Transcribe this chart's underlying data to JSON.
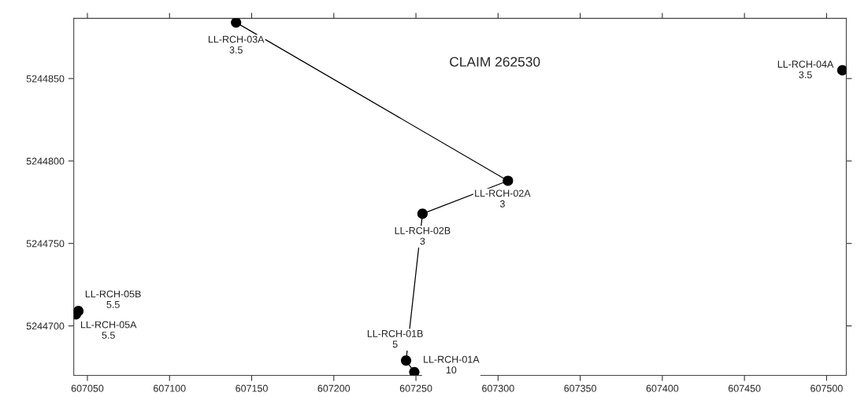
{
  "chart_data": {
    "type": "scatter",
    "series": [
      {
        "type": "line",
        "color": "#000000",
        "marker": "none",
        "line_style": "solid",
        "x": [
          607140.5,
          607306,
          607254,
          607244,
          607249
        ],
        "values": [
          5244884,
          5244788,
          5244768,
          5244679,
          5244672
        ]
      },
      {
        "color": "#000000",
        "marker": "circle",
        "x": [
          607140.5,
          607306,
          607254,
          607244,
          607249,
          607044.5,
          607043,
          607509.6
        ],
        "values": [
          5244884,
          5244788,
          5244768,
          5244679,
          5244672,
          5244709,
          5244707,
          5244855
        ]
      }
    ],
    "annotations": [
      {
        "text": "LL-RCH-03A\n3.5",
        "x": 607140.5,
        "y": 5244884
      },
      {
        "text": "LL-RCH-02A\n3",
        "x": 607306,
        "y": 5244788
      },
      {
        "text": "LL-RCH-02B\n3",
        "x": 607254,
        "y": 5244768
      },
      {
        "text": "LL-RCH-01B\n5",
        "x": 607244,
        "y": 5244679
      },
      {
        "text": "LL-RCH-01A\n10",
        "x": 607249,
        "y": 5244672
      },
      {
        "text": "LL-RCH-05B\n5.5",
        "x": 607044.5,
        "y": 5244709
      },
      {
        "text": "LL-RCH-05A\n5.5",
        "x": 607043,
        "y": 5244707
      },
      {
        "text": "LL-RCH-04A\n3.5",
        "x": 607509.6,
        "y": 5244855
      },
      "CLAIM 262530"
    ],
    "xlim": [
      607041.7,
      607512
    ],
    "xticks": [
      607050,
      607100,
      607150,
      607200,
      607250,
      607300,
      607350,
      607400,
      607450,
      607500
    ],
    "ylim": [
      5244670,
      5244886.5
    ],
    "yticks": [
      5244700,
      5244750,
      5244800,
      5244850
    ],
    "grid": false,
    "legend": false
  }
}
